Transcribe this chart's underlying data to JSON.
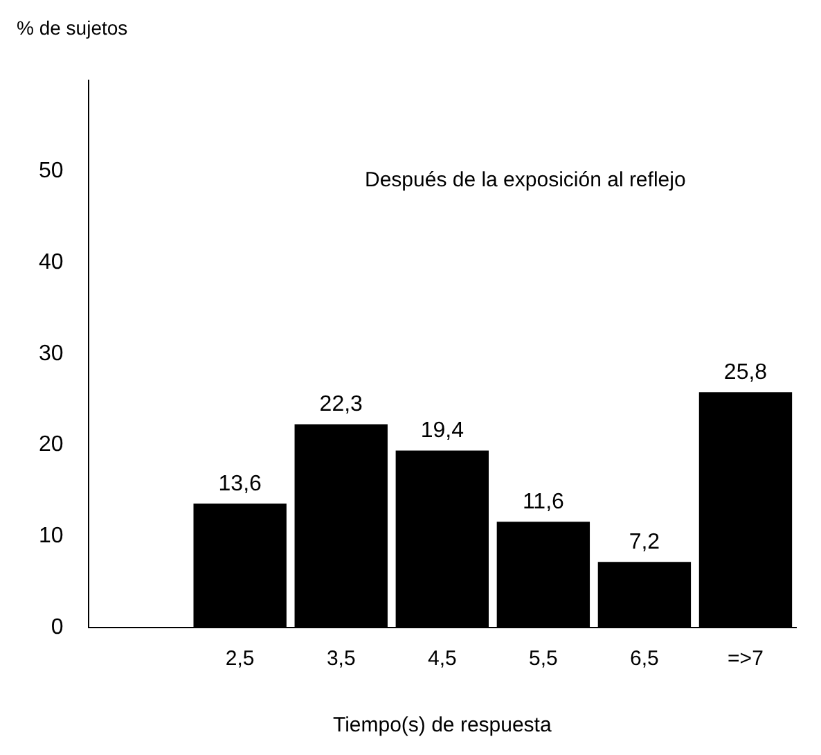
{
  "chart_data": {
    "type": "bar",
    "ylabel": "% de sujetos",
    "xlabel": "Tiempo(s) de respuesta",
    "annotations": [
      "Después de la exposición al reflejo"
    ],
    "categories": [
      null,
      "2,5",
      "3,5",
      "4,5",
      "5,5",
      "6,5",
      "=>7"
    ],
    "values": [
      null,
      13.6,
      22.3,
      19.4,
      11.6,
      7.2,
      25.8
    ],
    "value_labels": [
      null,
      "13,6",
      "22,3",
      "19,4",
      "11,6",
      "7,2",
      "25,8"
    ],
    "color": "#000000",
    "ylim": [
      0,
      60
    ],
    "yticks": [
      0,
      10,
      20,
      30,
      40,
      50
    ],
    "grid": false,
    "legend": false
  }
}
